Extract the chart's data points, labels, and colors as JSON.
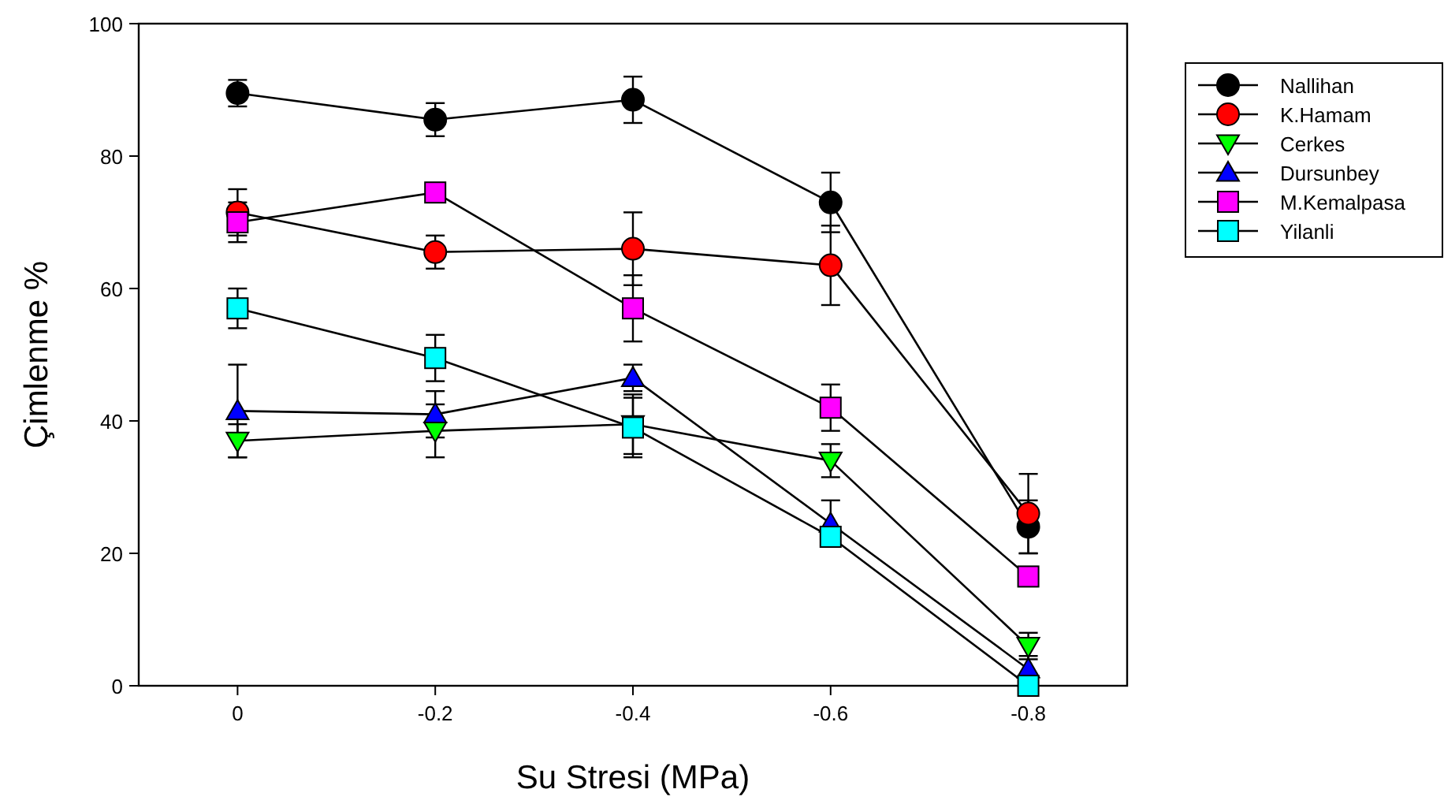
{
  "chart_data": {
    "type": "line",
    "xlabel": "Su Stresi (MPa)",
    "ylabel": "Çimlenme %",
    "x": [
      0,
      -0.2,
      -0.4,
      -0.6,
      -0.8
    ],
    "xlim": [
      0.1,
      -0.9
    ],
    "xticks": [
      0,
      -0.2,
      -0.4,
      -0.6,
      -0.8
    ],
    "ylim": [
      0,
      100
    ],
    "yticks": [
      0,
      20,
      40,
      60,
      80,
      100
    ],
    "grid": false,
    "legend": "right",
    "line_style": "solid",
    "series": [
      {
        "name": "Nallihan",
        "color": "#000000",
        "marker": "circle",
        "values": [
          89.5,
          85.5,
          88.5,
          73,
          24
        ],
        "errors": [
          2,
          2.5,
          3.5,
          4.5,
          4
        ]
      },
      {
        "name": "K.Hamam",
        "color": "#ff0000",
        "marker": "circle",
        "values": [
          71.5,
          65.5,
          66,
          63.5,
          26
        ],
        "errors": [
          3.5,
          2.5,
          5.5,
          6,
          6
        ]
      },
      {
        "name": "Cerkes",
        "color": "#00ff00",
        "marker": "triangle-down",
        "values": [
          37,
          38.5,
          39.5,
          34,
          6
        ],
        "errors": [
          2.5,
          4,
          4.5,
          2.5,
          2
        ]
      },
      {
        "name": "Dursunbey",
        "color": "#0000ff",
        "marker": "triangle",
        "values": [
          41.5,
          41,
          46.5,
          24.5,
          2.5
        ],
        "errors": [
          7,
          3.5,
          2,
          3.5,
          2
        ]
      },
      {
        "name": "M.Kemalpasa",
        "color": "#ff00ff",
        "marker": "square",
        "values": [
          70,
          74.5,
          57,
          42,
          16.5
        ],
        "errors": [
          3,
          1,
          5,
          3.5,
          null
        ]
      },
      {
        "name": "Yilanli",
        "color": "#00ffff",
        "marker": "square",
        "values": [
          57,
          49.5,
          39,
          22.5,
          0
        ],
        "errors": [
          3,
          3.5,
          4.5,
          1,
          1
        ]
      }
    ]
  }
}
